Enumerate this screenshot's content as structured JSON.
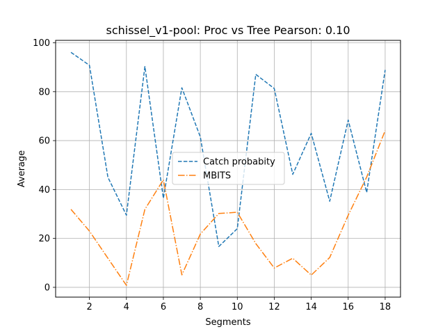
{
  "chart_data": {
    "type": "line",
    "title": "schissel_v1-pool: Proc vs Tree Pearson: 0.10",
    "xlabel": "Segments",
    "ylabel": "Average",
    "xlim": [
      0.17,
      18.83
    ],
    "ylim": [
      -4,
      101
    ],
    "xticks": [
      2,
      4,
      6,
      8,
      10,
      12,
      14,
      16,
      18
    ],
    "yticks": [
      0,
      20,
      40,
      60,
      80,
      100
    ],
    "grid": true,
    "legend_position": "center",
    "x": [
      1,
      2,
      3,
      4,
      5,
      6,
      7,
      8,
      9,
      10,
      11,
      12,
      13,
      14,
      15,
      16,
      17,
      18
    ],
    "series": [
      {
        "name": "Catch probabity",
        "color": "#1f77b4",
        "dash": "dashed",
        "values": [
          96.1,
          90.8,
          45,
          29.5,
          90.3,
          36.4,
          81.6,
          61.5,
          16.7,
          24,
          87.1,
          81.3,
          46.2,
          63,
          35.2,
          68.4,
          38.8,
          88.9
        ]
      },
      {
        "name": "MBITS",
        "color": "#ff7f0e",
        "dash": "dashdot",
        "values": [
          31.9,
          23,
          11.9,
          0.8,
          31.9,
          44,
          5.1,
          21.8,
          30.2,
          30.7,
          17.9,
          7.9,
          11.9,
          5,
          12.2,
          29.5,
          45.1,
          64.1
        ]
      }
    ]
  }
}
